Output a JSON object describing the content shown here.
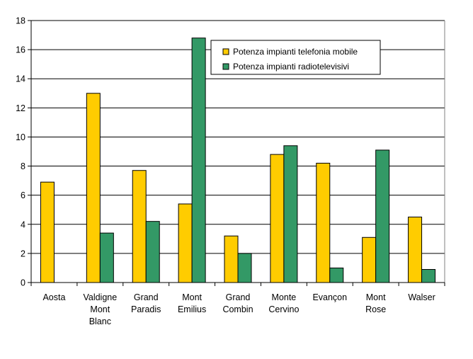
{
  "chart_data": {
    "type": "bar",
    "title": "",
    "xlabel": "",
    "ylabel": "",
    "ylim": [
      0,
      18
    ],
    "yticks": [
      0,
      2,
      4,
      6,
      8,
      10,
      12,
      14,
      16,
      18
    ],
    "grid": true,
    "legend_position": "top-right",
    "categories": [
      [
        "Aosta"
      ],
      [
        "Valdigne",
        "Mont",
        "Blanc"
      ],
      [
        "Grand",
        "Paradis"
      ],
      [
        "Mont",
        "Emilius"
      ],
      [
        "Grand",
        "Combin"
      ],
      [
        "Monte",
        "Cervino"
      ],
      [
        "Evançon"
      ],
      [
        "Mont",
        "Rose"
      ],
      [
        "Walser"
      ]
    ],
    "series": [
      {
        "name": "Potenza impianti telefonia mobile",
        "color": "#FFCC00",
        "values": [
          6.9,
          13.0,
          7.7,
          5.4,
          3.2,
          8.8,
          8.2,
          3.1,
          4.5
        ]
      },
      {
        "name": "Potenza impianti radiotelevisivi",
        "color": "#339966",
        "values": [
          0,
          3.4,
          4.2,
          16.8,
          2.0,
          9.4,
          1.0,
          9.1,
          0.9
        ]
      }
    ]
  }
}
